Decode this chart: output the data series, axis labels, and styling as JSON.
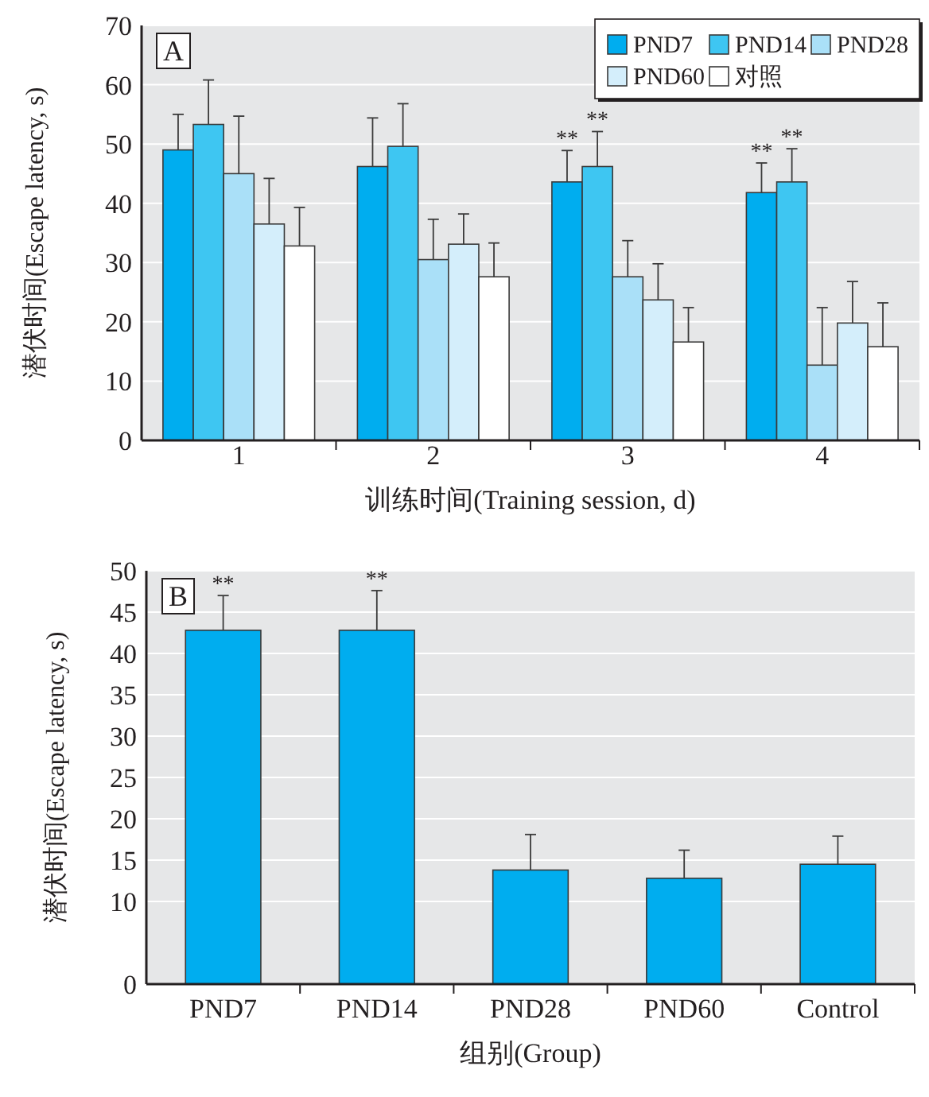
{
  "chart_data": [
    {
      "type": "bar",
      "categories": [
        "1",
        "2",
        "3",
        "4"
      ],
      "xlabel": "训练时间(Training session, d)",
      "ylabel": "潜伏时间(Escape latency, s)",
      "ylim": [
        0,
        70
      ],
      "yticks": [
        0,
        10,
        20,
        30,
        40,
        50,
        60,
        70
      ],
      "grid": "y",
      "legend": "top right",
      "series": [
        {
          "name": "PND7",
          "color": "#00adef",
          "values": [
            49.0,
            46.2,
            43.6,
            41.8
          ],
          "errors": [
            [
              49.0,
              55.0
            ],
            [
              46.2,
              54.4
            ],
            [
              43.6,
              48.9
            ],
            [
              41.8,
              46.8
            ]
          ]
        },
        {
          "name": "PND14",
          "color": "#3ec6f2",
          "values": [
            53.3,
            49.6,
            46.2,
            43.6
          ],
          "errors": [
            [
              53.3,
              60.8
            ],
            [
              49.6,
              56.8
            ],
            [
              46.2,
              52.1
            ],
            [
              43.6,
              49.2
            ]
          ]
        },
        {
          "name": "PND28",
          "color": "#aae0f8",
          "values": [
            45.0,
            30.5,
            27.6,
            12.7
          ],
          "errors": [
            [
              45.0,
              54.7
            ],
            [
              30.5,
              37.3
            ],
            [
              27.6,
              33.7
            ],
            [
              12.7,
              22.4
            ]
          ]
        },
        {
          "name": "PND60",
          "color": "#d4eefb",
          "values": [
            36.5,
            33.1,
            23.7,
            19.8
          ],
          "errors": [
            [
              36.5,
              44.2
            ],
            [
              33.1,
              38.2
            ],
            [
              23.7,
              29.8
            ],
            [
              19.8,
              26.8
            ]
          ]
        },
        {
          "name": "对照",
          "color": "#ffffff",
          "values": [
            32.8,
            27.6,
            16.6,
            15.8
          ],
          "errors": [
            [
              32.8,
              39.3
            ],
            [
              27.6,
              33.3
            ],
            [
              16.6,
              22.4
            ],
            [
              15.8,
              23.2
            ]
          ]
        }
      ],
      "annotations": [
        "A",
        "**",
        "**",
        "**",
        "**"
      ]
    },
    {
      "type": "bar",
      "categories": [
        "PND7",
        "PND14",
        "PND28",
        "PND60",
        "Control"
      ],
      "xlabel": "组别(Group)",
      "ylabel": "潜伏时间(Escape latency, s)",
      "ylim": [
        0,
        50
      ],
      "yticks": [
        0,
        10,
        15,
        20,
        25,
        30,
        35,
        40,
        45,
        50
      ],
      "grid": "y",
      "series": [
        {
          "color": "#00adef",
          "values": [
            42.8,
            42.8,
            13.8,
            12.8,
            14.5
          ],
          "errors": [
            [
              42.8,
              47.0
            ],
            [
              42.8,
              47.6
            ],
            [
              13.8,
              18.1
            ],
            [
              12.8,
              16.2
            ],
            [
              14.5,
              17.9
            ]
          ]
        }
      ],
      "annotations": [
        "B",
        {
          "text": "**",
          "x": "PND7",
          "y": 47.0
        },
        {
          "text": "**",
          "x": "PND14",
          "y": 47.6
        }
      ]
    }
  ]
}
